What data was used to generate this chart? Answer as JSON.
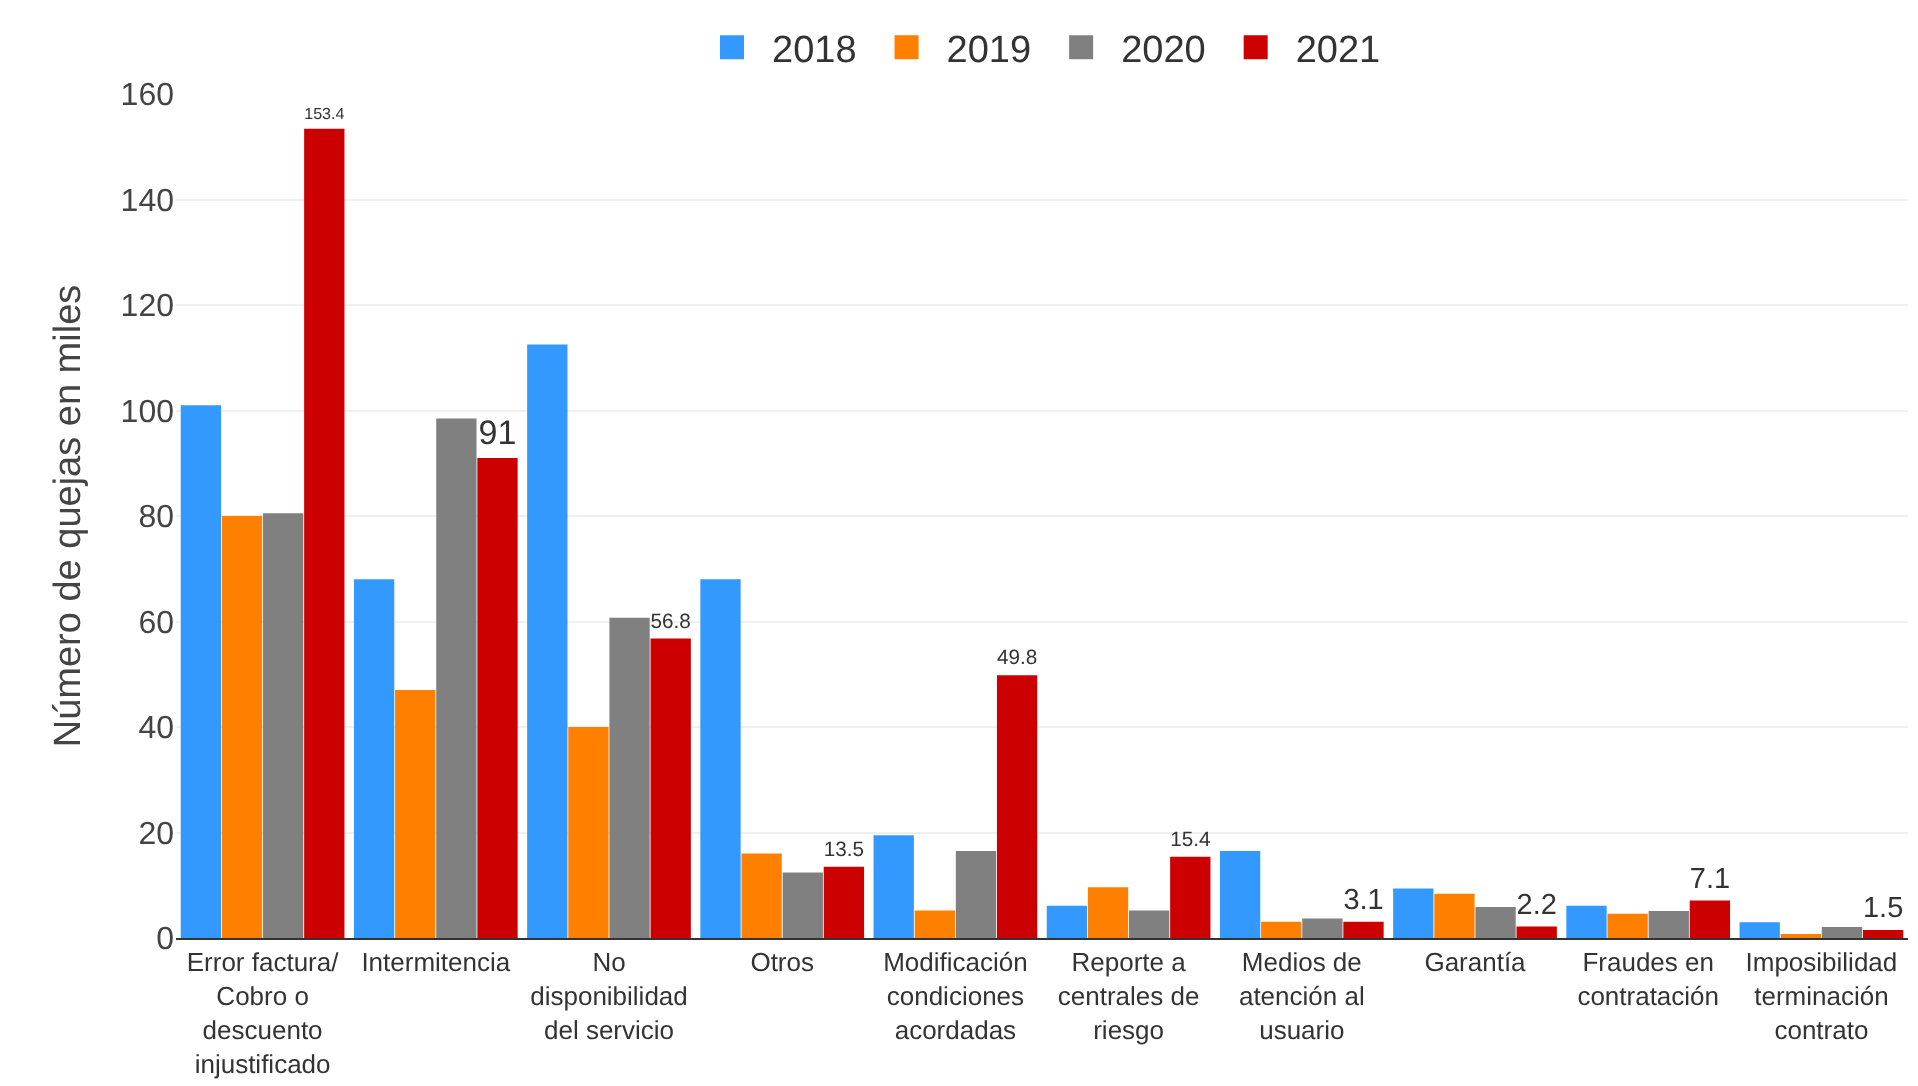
{
  "chart_data": {
    "type": "bar",
    "ylabel": "Número de quejas en miles",
    "categories": [
      "Error factura/ Cobro o descuento injustificado",
      "Intermitencia",
      "No disponibilidad del servicio",
      "Otros",
      "Modificación condiciones acordadas",
      "Reporte a centrales de riesgo",
      "Medios de atención al usuario",
      "Garantía",
      "Fraudes en contratación",
      "Imposibilidad terminación contrato"
    ],
    "series": [
      {
        "name": "2018",
        "color": "#3399ff",
        "values": [
          101,
          68,
          112.5,
          68,
          19.5,
          6.1,
          16.5,
          9.4,
          6.1,
          3.0
        ]
      },
      {
        "name": "2019",
        "color": "#ff8000",
        "values": [
          80,
          47,
          40,
          16,
          5.2,
          9.6,
          3.1,
          8.4,
          4.6,
          0.6
        ]
      },
      {
        "name": "2020",
        "color": "#808080",
        "values": [
          80.5,
          98.5,
          60.7,
          12.4,
          16.5,
          5.2,
          3.7,
          5.9,
          5.1,
          2.1
        ]
      },
      {
        "name": "2021",
        "color": "#cc0000",
        "values": [
          153.4,
          91,
          56.8,
          13.5,
          49.8,
          15.4,
          3.1,
          2.2,
          7.1,
          1.5
        ],
        "value_labels": [
          "153.4",
          "91",
          "56.8",
          "13.5",
          "49.8",
          "15.4",
          "3.1",
          "2.2",
          "7.1",
          "1.5"
        ]
      }
    ],
    "ylim": [
      0,
      160
    ],
    "yticks": [
      0,
      20,
      40,
      60,
      80,
      100,
      120,
      140,
      160
    ],
    "grid": "y",
    "legend": "top"
  }
}
